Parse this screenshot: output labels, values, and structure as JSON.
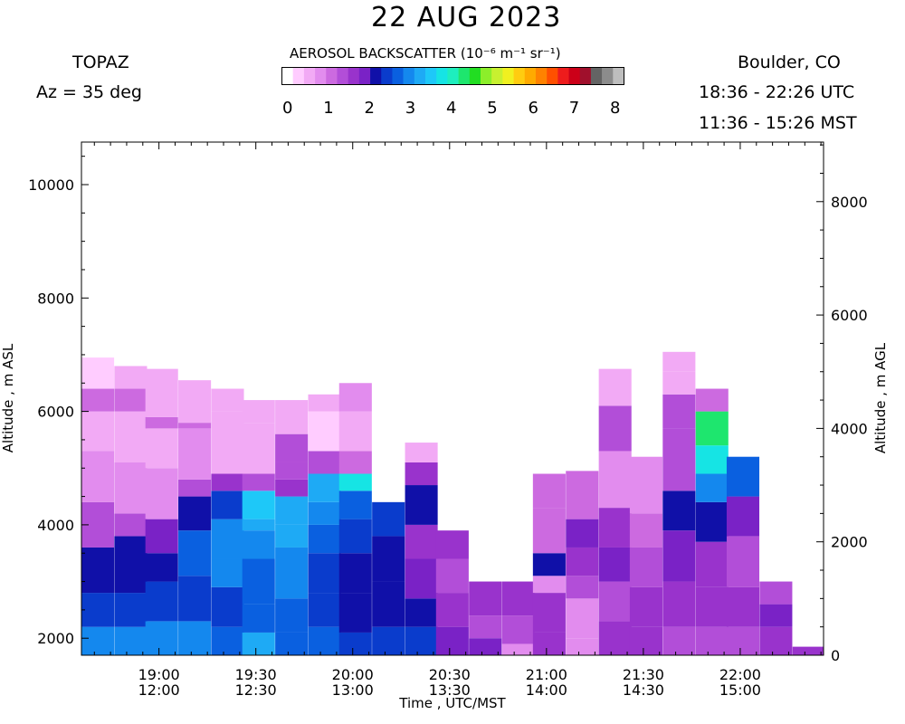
{
  "header": {
    "title": "22 AUG 2023",
    "instrument": "TOPAZ",
    "azimuth": "Az =  35 deg",
    "location": "Boulder, CO",
    "utc_range": "18:36 - 22:26 UTC",
    "mst_range": "11:36 - 15:26 MST"
  },
  "colorbar": {
    "title": "AEROSOL BACKSCATTER (10⁻⁶ m⁻¹ sr⁻¹)",
    "ticks": [
      "0",
      "1",
      "2",
      "3",
      "4",
      "5",
      "6",
      "7",
      "8"
    ],
    "range": [
      0,
      8
    ],
    "colors": [
      "#ffffff",
      "#ffccff",
      "#f2aaf5",
      "#e28cee",
      "#cc6ae0",
      "#b24ed8",
      "#9933cc",
      "#7a22c6",
      "#1010a8",
      "#0a3ccc",
      "#0a60e0",
      "#1488ee",
      "#1eaaf5",
      "#1ec8f8",
      "#16e4e4",
      "#1eeebe",
      "#1ee66e",
      "#22dd22",
      "#8cee2a",
      "#c8f030",
      "#f0f020",
      "#ffcc10",
      "#ffaa00",
      "#ff8200",
      "#ff5000",
      "#ee1c1c",
      "#cc0018",
      "#a0102c",
      "#646464",
      "#8c8c8c",
      "#bebebe"
    ]
  },
  "chart_data": {
    "type": "heatmap",
    "xlabel": "Time , UTC/MST",
    "ylabel_left": "Altitude , m ASL",
    "ylabel_right": "Altitude , m AGL",
    "xlim_utc_hours": [
      18.6,
      22.43
    ],
    "ylim_left_m": [
      1700,
      10750
    ],
    "x_ticks": [
      {
        "utc": "19:00",
        "mst": "12:00",
        "hour": 19.0
      },
      {
        "utc": "19:30",
        "mst": "12:30",
        "hour": 19.5
      },
      {
        "utc": "20:00",
        "mst": "13:00",
        "hour": 20.0
      },
      {
        "utc": "20:30",
        "mst": "13:30",
        "hour": 20.5
      },
      {
        "utc": "21:00",
        "mst": "14:00",
        "hour": 21.0
      },
      {
        "utc": "21:30",
        "mst": "14:30",
        "hour": 21.5
      },
      {
        "utc": "22:00",
        "mst": "15:00",
        "hour": 22.0
      }
    ],
    "y_left_ticks": [
      {
        "label": "2000",
        "value": 2000
      },
      {
        "label": "4000",
        "value": 4000
      },
      {
        "label": "6000",
        "value": 6000
      },
      {
        "label": "8000",
        "value": 8000
      },
      {
        "label": "10000",
        "value": 10000
      }
    ],
    "y_right_ticks": [
      {
        "label": "0",
        "value_asl": 1700
      },
      {
        "label": "2000",
        "value_asl": 3700
      },
      {
        "label": "4000",
        "value_asl": 5700
      },
      {
        "label": "6000",
        "value_asl": 7700
      },
      {
        "label": "8000",
        "value_asl": 9700
      }
    ],
    "profile_step_hours": 0.1667,
    "profiles": [
      {
        "start": 18.6,
        "top": 6950,
        "bands": [
          [
            1700,
            2200,
            2.8
          ],
          [
            2200,
            2800,
            2.4
          ],
          [
            2800,
            3600,
            2.0
          ],
          [
            3600,
            4400,
            1.3
          ],
          [
            4400,
            5300,
            0.9
          ],
          [
            5300,
            6000,
            0.6
          ],
          [
            6000,
            6400,
            1.1
          ],
          [
            6400,
            6950,
            0.3
          ]
        ]
      },
      {
        "start": 18.77,
        "top": 6800,
        "bands": [
          [
            1700,
            2200,
            2.9
          ],
          [
            2200,
            2800,
            2.5
          ],
          [
            2800,
            3800,
            2.0
          ],
          [
            3800,
            4200,
            1.2
          ],
          [
            4200,
            5100,
            0.8
          ],
          [
            5100,
            6000,
            0.5
          ],
          [
            6000,
            6400,
            1.1
          ],
          [
            6400,
            6800,
            0.4
          ]
        ]
      },
      {
        "start": 18.93,
        "top": 6750,
        "bands": [
          [
            1700,
            2300,
            2.9
          ],
          [
            2300,
            3000,
            2.4
          ],
          [
            3000,
            3500,
            2.0
          ],
          [
            3500,
            4100,
            1.8
          ],
          [
            4100,
            5000,
            0.8
          ],
          [
            5000,
            5700,
            0.5
          ],
          [
            5700,
            5900,
            1.0
          ],
          [
            5900,
            6750,
            0.5
          ]
        ]
      },
      {
        "start": 19.1,
        "top": 6550,
        "bands": [
          [
            1700,
            2300,
            2.8
          ],
          [
            2300,
            3100,
            2.5
          ],
          [
            3100,
            3900,
            2.7
          ],
          [
            3900,
            4500,
            2.2
          ],
          [
            4500,
            4800,
            1.3
          ],
          [
            4800,
            5700,
            0.7
          ],
          [
            5700,
            5800,
            1.1
          ],
          [
            5800,
            6550,
            0.5
          ]
        ]
      },
      {
        "start": 19.27,
        "top": 6400,
        "bands": [
          [
            1700,
            2200,
            2.6
          ],
          [
            2200,
            2900,
            2.5
          ],
          [
            2900,
            3400,
            2.8
          ],
          [
            3400,
            4100,
            3.0
          ],
          [
            4100,
            4600,
            2.5
          ],
          [
            4600,
            4900,
            1.5
          ],
          [
            4900,
            6000,
            0.6
          ],
          [
            6000,
            6400,
            0.4
          ]
        ]
      },
      {
        "start": 19.43,
        "top": 6200,
        "bands": [
          [
            1700,
            2100,
            3.1
          ],
          [
            2100,
            2600,
            2.6
          ],
          [
            2600,
            3400,
            2.7
          ],
          [
            3400,
            3900,
            2.9
          ],
          [
            3900,
            4100,
            3.2
          ],
          [
            4100,
            4600,
            3.5
          ],
          [
            4600,
            4900,
            1.4
          ],
          [
            4900,
            5800,
            0.6
          ],
          [
            5800,
            6200,
            0.4
          ]
        ]
      },
      {
        "start": 19.6,
        "top": 6200,
        "bands": [
          [
            1700,
            2100,
            2.7
          ],
          [
            2100,
            2700,
            2.6
          ],
          [
            2700,
            3600,
            2.8
          ],
          [
            3600,
            4000,
            3.3
          ],
          [
            4000,
            4500,
            3.1
          ],
          [
            4500,
            4800,
            1.5
          ],
          [
            4800,
            5100,
            1.3
          ],
          [
            5100,
            5600,
            1.2
          ],
          [
            5600,
            6200,
            0.5
          ]
        ]
      },
      {
        "start": 19.77,
        "top": 6300,
        "bands": [
          [
            1700,
            2200,
            2.6
          ],
          [
            2200,
            2800,
            2.5
          ],
          [
            2800,
            3500,
            2.3
          ],
          [
            3500,
            4000,
            2.6
          ],
          [
            4000,
            4400,
            2.9
          ],
          [
            4400,
            4900,
            3.3
          ],
          [
            4900,
            5300,
            1.2
          ],
          [
            5300,
            6000,
            0.3
          ],
          [
            6000,
            6300,
            0.5
          ]
        ]
      },
      {
        "start": 19.93,
        "top": 6500,
        "bands": [
          [
            1700,
            2100,
            2.4
          ],
          [
            2100,
            2800,
            2.2
          ],
          [
            2800,
            3500,
            2.0
          ],
          [
            3500,
            4100,
            2.3
          ],
          [
            4100,
            4600,
            2.6
          ],
          [
            4600,
            4900,
            3.6
          ],
          [
            4900,
            5300,
            1.0
          ],
          [
            5300,
            6000,
            0.6
          ],
          [
            6000,
            6500,
            0.8
          ]
        ]
      },
      {
        "start": 20.1,
        "top": 4400,
        "bands": [
          [
            1700,
            2200,
            2.5
          ],
          [
            2200,
            3000,
            2.2
          ],
          [
            3000,
            3800,
            2.1
          ],
          [
            3800,
            4400,
            2.4
          ]
        ]
      },
      {
        "start": 20.27,
        "top": 5450,
        "bands": [
          [
            1700,
            2200,
            2.3
          ],
          [
            2200,
            2700,
            2.2
          ],
          [
            2700,
            3400,
            1.8
          ],
          [
            3400,
            4000,
            1.5
          ],
          [
            4000,
            4700,
            2.2
          ],
          [
            4700,
            5100,
            1.6
          ],
          [
            5100,
            5450,
            0.6
          ]
        ]
      },
      {
        "start": 20.43,
        "top": 3900,
        "bands": [
          [
            1700,
            2200,
            1.9
          ],
          [
            2200,
            2800,
            1.7
          ],
          [
            2800,
            3400,
            1.4
          ],
          [
            3400,
            3900,
            1.6
          ]
        ]
      },
      {
        "start": 20.6,
        "top": 3000,
        "bands": [
          [
            1700,
            2000,
            1.9
          ],
          [
            2000,
            2400,
            1.3
          ],
          [
            2400,
            3000,
            1.6
          ]
        ]
      },
      {
        "start": 20.77,
        "top": 3000,
        "bands": [
          [
            1700,
            1900,
            0.8
          ],
          [
            1900,
            2400,
            1.2
          ],
          [
            2400,
            3000,
            1.5
          ]
        ]
      },
      {
        "start": 20.93,
        "top": 4900,
        "bands": [
          [
            1700,
            2100,
            1.5
          ],
          [
            2100,
            2800,
            1.7
          ],
          [
            2800,
            3100,
            0.9
          ],
          [
            3100,
            3500,
            2.0
          ],
          [
            3500,
            4300,
            1.1
          ],
          [
            4300,
            4900,
            1.0
          ]
        ]
      },
      {
        "start": 21.1,
        "top": 4950,
        "bands": [
          [
            1700,
            2000,
            0.8
          ],
          [
            2000,
            2700,
            0.7
          ],
          [
            2700,
            3100,
            1.2
          ],
          [
            3100,
            3600,
            1.7
          ],
          [
            3600,
            4100,
            1.8
          ],
          [
            4100,
            4950,
            1.0
          ]
        ]
      },
      {
        "start": 21.27,
        "top": 6750,
        "bands": [
          [
            1700,
            2300,
            1.5
          ],
          [
            2300,
            3000,
            1.3
          ],
          [
            3000,
            3600,
            1.8
          ],
          [
            3600,
            4300,
            1.6
          ],
          [
            4300,
            5300,
            0.8
          ],
          [
            5300,
            6100,
            1.4
          ],
          [
            6100,
            6750,
            0.5
          ]
        ]
      },
      {
        "start": 21.43,
        "top": 5200,
        "bands": [
          [
            1700,
            2200,
            1.5
          ],
          [
            2200,
            2900,
            1.7
          ],
          [
            2900,
            3600,
            1.2
          ],
          [
            3600,
            4200,
            1.1
          ],
          [
            4200,
            5200,
            0.8
          ]
        ]
      },
      {
        "start": 21.6,
        "top": 7050,
        "bands": [
          [
            1700,
            2200,
            1.4
          ],
          [
            2200,
            3000,
            1.6
          ],
          [
            3000,
            3900,
            1.8
          ],
          [
            3900,
            4600,
            2.1
          ],
          [
            4600,
            5700,
            1.2
          ],
          [
            5700,
            6300,
            1.3
          ],
          [
            6300,
            6700,
            0.6
          ],
          [
            6700,
            7050,
            0.4
          ]
        ]
      },
      {
        "start": 21.77,
        "top": 6400,
        "bands": [
          [
            1700,
            2200,
            1.4
          ],
          [
            2200,
            2900,
            1.6
          ],
          [
            2900,
            3700,
            1.5
          ],
          [
            3700,
            4400,
            2.2
          ],
          [
            4400,
            4900,
            2.9
          ],
          [
            4900,
            5400,
            3.8
          ],
          [
            5400,
            6000,
            4.3
          ],
          [
            6000,
            6400,
            1.1
          ]
        ]
      },
      {
        "start": 21.93,
        "top": 5200,
        "bands": [
          [
            1700,
            2200,
            1.3
          ],
          [
            2200,
            2900,
            1.5
          ],
          [
            2900,
            3800,
            1.2
          ],
          [
            3800,
            4500,
            1.9
          ],
          [
            4500,
            5200,
            2.7
          ]
        ]
      },
      {
        "start": 22.1,
        "top": 3000,
        "bands": [
          [
            1700,
            2200,
            1.6
          ],
          [
            2200,
            2600,
            1.9
          ],
          [
            2600,
            3000,
            1.4
          ]
        ]
      },
      {
        "start": 22.27,
        "top": 1850,
        "bands": [
          [
            1700,
            1850,
            1.6
          ]
        ]
      }
    ]
  }
}
